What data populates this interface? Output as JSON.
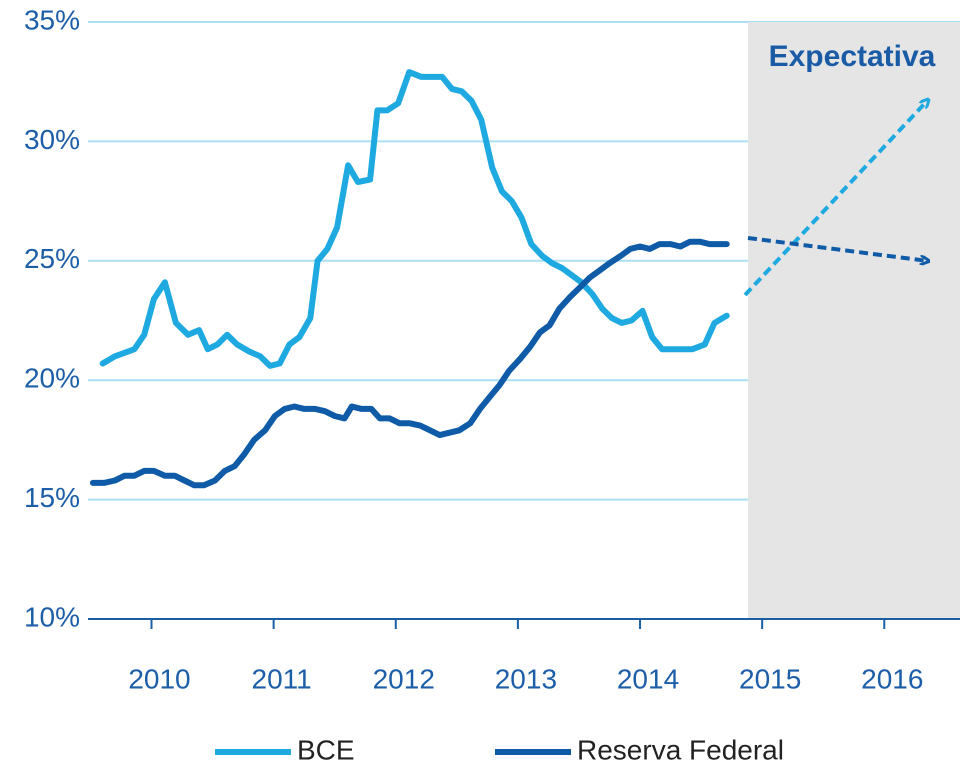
{
  "chart_data": {
    "type": "line",
    "annotation": "Expectativa",
    "xlim": [
      2009.48,
      2016.62
    ],
    "xticks": [
      2010,
      2011,
      2012,
      2013,
      2014,
      2015,
      2016
    ],
    "ylim": [
      10,
      35
    ],
    "yticks": [
      {
        "value": 10,
        "label": "10%"
      },
      {
        "value": 15,
        "label": "15%"
      },
      {
        "value": 20,
        "label": "20%"
      },
      {
        "value": 25,
        "label": "25%"
      },
      {
        "value": 30,
        "label": "30%"
      },
      {
        "value": 35,
        "label": "35%"
      }
    ],
    "grid": true,
    "series": [
      {
        "name": "BCE",
        "color": "#1fa9e1",
        "x": [
          2009.6,
          2009.7,
          2009.86,
          2009.94,
          2010.02,
          2010.11,
          2010.2,
          2010.3,
          2010.39,
          2010.46,
          2010.54,
          2010.62,
          2010.7,
          2010.8,
          2010.89,
          2010.97,
          2011.05,
          2011.13,
          2011.21,
          2011.3,
          2011.36,
          2011.44,
          2011.52,
          2011.61,
          2011.69,
          2011.79,
          2011.85,
          2011.93,
          2012.02,
          2012.11,
          2012.21,
          2012.3,
          2012.38,
          2012.46,
          2012.54,
          2012.62,
          2012.7,
          2012.79,
          2012.87,
          2012.95,
          2013.03,
          2013.11,
          2013.2,
          2013.28,
          2013.36,
          2013.44,
          2013.52,
          2013.61,
          2013.69,
          2013.77,
          2013.85,
          2013.93,
          2014.02,
          2014.1,
          2014.18,
          2014.26,
          2014.34,
          2014.43,
          2014.53,
          2014.61,
          2014.71
        ],
        "values": [
          20.7,
          21.0,
          21.3,
          21.9,
          23.4,
          24.1,
          22.4,
          21.9,
          22.1,
          21.3,
          21.5,
          21.9,
          21.5,
          21.2,
          21.0,
          20.6,
          20.7,
          21.5,
          21.8,
          22.6,
          25.0,
          25.5,
          26.4,
          29.0,
          28.3,
          28.4,
          31.3,
          31.3,
          31.6,
          32.9,
          32.7,
          32.7,
          32.7,
          32.2,
          32.1,
          31.7,
          30.9,
          28.9,
          27.9,
          27.5,
          26.8,
          25.7,
          25.2,
          24.9,
          24.7,
          24.4,
          24.1,
          23.6,
          23.0,
          22.6,
          22.4,
          22.5,
          22.9,
          21.8,
          21.3,
          21.3,
          21.3,
          21.3,
          21.5,
          22.4,
          22.7
        ]
      },
      {
        "name": "Reserva Federal",
        "color": "#0f5ba7",
        "x": [
          2009.52,
          2009.61,
          2009.7,
          2009.78,
          2009.86,
          2009.94,
          2010.02,
          2010.11,
          2010.19,
          2010.27,
          2010.35,
          2010.43,
          2010.52,
          2010.6,
          2010.68,
          2010.76,
          2010.84,
          2010.93,
          2011.01,
          2011.09,
          2011.17,
          2011.25,
          2011.34,
          2011.42,
          2011.5,
          2011.58,
          2011.64,
          2011.72,
          2011.8,
          2011.87,
          2011.95,
          2012.03,
          2012.11,
          2012.2,
          2012.28,
          2012.36,
          2012.44,
          2012.52,
          2012.61,
          2012.69,
          2012.77,
          2012.85,
          2012.93,
          2013.02,
          2013.1,
          2013.18,
          2013.26,
          2013.34,
          2013.43,
          2013.51,
          2013.59,
          2013.67,
          2013.75,
          2013.84,
          2013.92,
          2014.0,
          2014.08,
          2014.16,
          2014.25,
          2014.33,
          2014.41,
          2014.49,
          2014.57,
          2014.71
        ],
        "values": [
          15.7,
          15.7,
          15.8,
          16.0,
          16.0,
          16.2,
          16.2,
          16.0,
          16.0,
          15.8,
          15.6,
          15.6,
          15.8,
          16.2,
          16.4,
          16.9,
          17.5,
          17.9,
          18.5,
          18.8,
          18.9,
          18.8,
          18.8,
          18.7,
          18.5,
          18.4,
          18.9,
          18.8,
          18.8,
          18.4,
          18.4,
          18.2,
          18.2,
          18.1,
          17.9,
          17.7,
          17.8,
          17.9,
          18.2,
          18.8,
          19.3,
          19.8,
          20.4,
          20.9,
          21.4,
          22.0,
          22.3,
          23.0,
          23.5,
          23.9,
          24.3,
          24.6,
          24.9,
          25.2,
          25.5,
          25.6,
          25.5,
          25.7,
          25.7,
          25.6,
          25.8,
          25.8,
          25.7,
          25.7
        ]
      }
    ]
  }
}
